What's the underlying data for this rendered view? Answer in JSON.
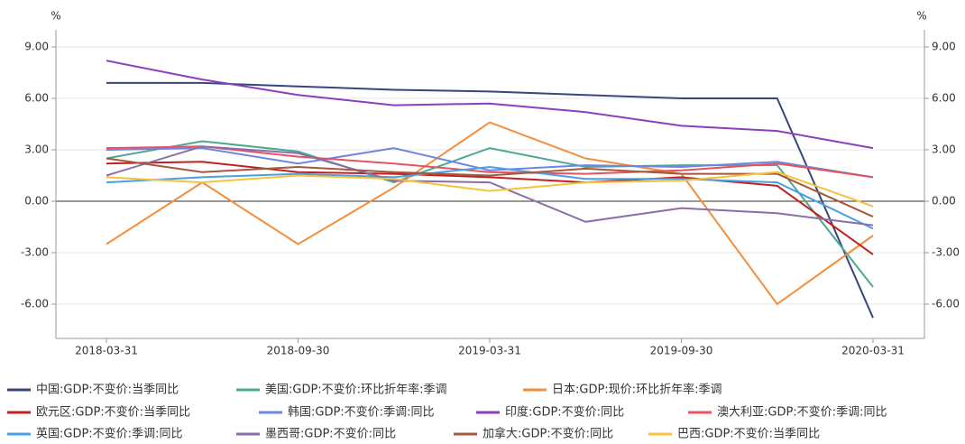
{
  "chart_data": {
    "type": "line",
    "y_label": "%",
    "y2_label": "%",
    "categories": [
      "2018-03-31",
      null,
      "2018-09-30",
      null,
      "2019-03-31",
      null,
      "2019-09-30",
      null,
      "2020-03-31"
    ],
    "ylim": [
      -8,
      10
    ],
    "yticks": [
      {
        "value": -6,
        "label": "-6.00"
      },
      {
        "value": -3,
        "label": "-3.00"
      },
      {
        "value": 0,
        "label": "0.00"
      },
      {
        "value": 3,
        "label": "3.00"
      },
      {
        "value": 6,
        "label": "6.00"
      },
      {
        "value": 9,
        "label": "9.00"
      }
    ],
    "y2lim": [
      -8,
      10
    ],
    "y2ticks": [
      {
        "value": -6,
        "label": "-6.00"
      },
      {
        "value": -3,
        "label": "-3.00"
      },
      {
        "value": 0,
        "label": "0.00"
      },
      {
        "value": 3,
        "label": "3.00"
      },
      {
        "value": 6,
        "label": "6.00"
      },
      {
        "value": 9,
        "label": "9.00"
      }
    ],
    "grid": true,
    "legend": "bottom",
    "series": [
      {
        "name": "中国:GDP:不变价:当季同比",
        "color": "#39467e",
        "values": [
          6.9,
          6.9,
          6.7,
          6.5,
          6.4,
          6.2,
          6.0,
          6.0,
          -6.8
        ]
      },
      {
        "name": "美国:GDP:不变价:环比折年率:季调",
        "color": "#4ea795",
        "values": [
          2.5,
          3.5,
          2.9,
          1.1,
          3.1,
          2.0,
          2.1,
          2.1,
          -5.0
        ]
      },
      {
        "name": "日本:GDP:现价:环比折年率:季调",
        "color": "#f28e3c",
        "values": [
          -2.5,
          1.1,
          -2.5,
          0.8,
          4.6,
          2.5,
          1.6,
          -6.0,
          -2.0
        ]
      },
      {
        "name": "欧元区:GDP:不变价:当季同比",
        "color": "#c0211f",
        "values": [
          2.2,
          2.3,
          1.7,
          1.6,
          1.4,
          1.1,
          1.4,
          0.9,
          -3.1
        ]
      },
      {
        "name": "韩国:GDP:不变价:季调:同比",
        "color": "#6f86e0",
        "values": [
          3.0,
          3.1,
          2.2,
          3.1,
          1.8,
          2.1,
          2.0,
          2.3,
          1.4
        ]
      },
      {
        "name": "印度:GDP:不变价:同比",
        "color": "#8a3fbf",
        "values": [
          8.2,
          7.1,
          6.2,
          5.6,
          5.7,
          5.2,
          4.4,
          4.1,
          3.1
        ]
      },
      {
        "name": "澳大利亚:GDP:不变价:季调:同比",
        "color": "#e8515f",
        "values": [
          3.1,
          3.2,
          2.6,
          2.2,
          1.7,
          1.6,
          1.8,
          2.2,
          1.4
        ]
      },
      {
        "name": "英国:GDP:不变价:季调:同比",
        "color": "#4a9ee6",
        "values": [
          1.1,
          1.4,
          1.6,
          1.4,
          2.0,
          1.3,
          1.3,
          1.1,
          -1.6
        ]
      },
      {
        "name": "墨西哥:GDP:不变价:同比",
        "color": "#8a6fa8",
        "values": [
          1.5,
          3.2,
          2.8,
          1.2,
          1.1,
          -1.2,
          -0.4,
          -0.7,
          -1.4
        ]
      },
      {
        "name": "加拿大:GDP:不变价:同比",
        "color": "#a5583b",
        "values": [
          2.5,
          1.7,
          2.0,
          1.7,
          1.5,
          1.9,
          1.6,
          1.6,
          -0.9
        ]
      },
      {
        "name": "巴西:GDP:不变价:当季同比",
        "color": "#f5c23c",
        "values": [
          1.4,
          1.1,
          1.5,
          1.3,
          0.6,
          1.1,
          1.2,
          1.7,
          -0.3
        ]
      }
    ]
  }
}
